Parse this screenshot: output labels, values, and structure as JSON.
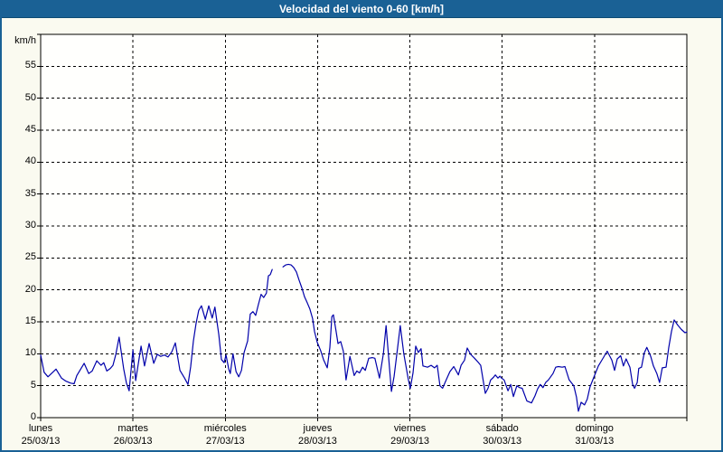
{
  "title_bar": {
    "text": "Velocidad del viento 0-60 [km/h]",
    "bg_color": "#1a6195",
    "text_color": "#ffffff"
  },
  "page": {
    "background_color": "#fafaf0",
    "border_color": "#1a6195"
  },
  "chart_data": {
    "type": "line",
    "title": "Velocidad del viento 0-60 [km/h]",
    "ylabel": "km/h",
    "xlabel": "",
    "ylim": [
      0,
      60
    ],
    "xlim": [
      0,
      168
    ],
    "ytick_interval": 5,
    "ytick_labels": [
      "0",
      "5",
      "10",
      "15",
      "20",
      "25",
      "30",
      "35",
      "40",
      "45",
      "50",
      "55"
    ],
    "x_unit": "hours from lunes 25/03/13 00:00",
    "grid": "black dashed; horizontal every 5 km/h, vertical at each day boundary",
    "legend_position": "none",
    "plot_bg": "#fffffd",
    "grid_color": "#000000",
    "line_color": "#0000aa",
    "days": [
      {
        "name": "lunes",
        "date": "25/03/13"
      },
      {
        "name": "martes",
        "date": "26/03/13"
      },
      {
        "name": "miércoles",
        "date": "27/03/13"
      },
      {
        "name": "jueves",
        "date": "28/03/13"
      },
      {
        "name": "viernes",
        "date": "29/03/13"
      },
      {
        "name": "sábado",
        "date": "30/03/13"
      },
      {
        "name": "domingo",
        "date": "31/03/13"
      }
    ],
    "data_gap_hours": [
      60.2,
      63.0
    ],
    "series": [
      {
        "name": "Velocidad del viento",
        "units": "km/h",
        "segments": [
          [
            [
              0,
              9.8
            ],
            [
              0.9,
              7.1
            ],
            [
              1.9,
              6.4
            ],
            [
              2.8,
              6.9
            ],
            [
              4,
              7.6
            ],
            [
              5.4,
              6.2
            ],
            [
              6.6,
              5.7
            ],
            [
              7.8,
              5.4
            ],
            [
              8.7,
              5.3
            ],
            [
              9.4,
              6.6
            ],
            [
              10.6,
              7.8
            ],
            [
              11.3,
              8.5
            ],
            [
              12.5,
              6.9
            ],
            [
              13.4,
              7.3
            ],
            [
              14.6,
              8.9
            ],
            [
              15.7,
              8.2
            ],
            [
              16.4,
              8.6
            ],
            [
              17.2,
              7.3
            ],
            [
              18.1,
              7.7
            ],
            [
              18.8,
              8.2
            ],
            [
              19.5,
              9.8
            ],
            [
              20.4,
              12.6
            ],
            [
              21.6,
              7.6
            ],
            [
              22.3,
              5.4
            ],
            [
              23,
              4.2
            ],
            [
              24,
              10.6
            ],
            [
              24.7,
              5.8
            ],
            [
              26.1,
              11.2
            ],
            [
              27,
              8.1
            ],
            [
              28.2,
              11.6
            ],
            [
              29.4,
              8.5
            ],
            [
              30.3,
              9.9
            ],
            [
              31.2,
              9.6
            ],
            [
              32.2,
              9.8
            ],
            [
              33.1,
              9.5
            ],
            [
              34.1,
              10.3
            ],
            [
              35,
              11.7
            ],
            [
              36.2,
              7.4
            ],
            [
              37.4,
              6.2
            ],
            [
              38.3,
              5.2
            ],
            [
              39,
              8
            ],
            [
              39.7,
              12
            ],
            [
              40.4,
              14.7
            ],
            [
              41.1,
              16.8
            ],
            [
              41.8,
              17.5
            ],
            [
              42.8,
              15.4
            ],
            [
              43.7,
              17.5
            ],
            [
              44.6,
              15.6
            ],
            [
              45.3,
              17.3
            ],
            [
              46.3,
              13
            ],
            [
              47,
              9.1
            ],
            [
              47.7,
              8.6
            ],
            [
              48.2,
              9.8
            ],
            [
              48.9,
              7.6
            ],
            [
              49.3,
              6.9
            ],
            [
              50,
              10
            ],
            [
              50.8,
              7.2
            ],
            [
              51.5,
              6.4
            ],
            [
              52.2,
              7.4
            ],
            [
              52.9,
              10.2
            ],
            [
              53.8,
              12
            ],
            [
              54.5,
              16.2
            ],
            [
              55.2,
              16.6
            ],
            [
              55.9,
              16
            ],
            [
              56.6,
              17.7
            ],
            [
              57.3,
              19.3
            ],
            [
              58,
              18.8
            ],
            [
              58.7,
              19.5
            ],
            [
              59.2,
              22.2
            ],
            [
              59.7,
              22.4
            ],
            [
              60.2,
              23.2
            ]
          ],
          [
            [
              63,
              23.6
            ],
            [
              63.7,
              23.9
            ],
            [
              64.4,
              24
            ],
            [
              65.1,
              23.9
            ],
            [
              65.8,
              23.5
            ],
            [
              66.5,
              22.8
            ],
            [
              67.2,
              21.5
            ],
            [
              67.9,
              20.3
            ],
            [
              68.6,
              18.9
            ],
            [
              69.3,
              18
            ],
            [
              70,
              17
            ],
            [
              70.7,
              15.5
            ],
            [
              71.2,
              13.5
            ],
            [
              71.9,
              11.8
            ],
            [
              72.8,
              10.5
            ],
            [
              73.6,
              9
            ],
            [
              74.5,
              7.8
            ],
            [
              75.2,
              11
            ],
            [
              75.7,
              15.8
            ],
            [
              76.1,
              16.1
            ],
            [
              76.8,
              13.5
            ],
            [
              77.3,
              11.6
            ],
            [
              78,
              11.9
            ],
            [
              78.7,
              10.4
            ],
            [
              79.4,
              5.9
            ],
            [
              80.4,
              9.6
            ],
            [
              81.5,
              6.6
            ],
            [
              82.2,
              7.3
            ],
            [
              82.9,
              7
            ],
            [
              83.7,
              7.9
            ],
            [
              84.4,
              7.4
            ],
            [
              85.3,
              9.3
            ],
            [
              86.2,
              9.4
            ],
            [
              86.9,
              9.3
            ],
            [
              88.1,
              6.2
            ],
            [
              89.1,
              10
            ],
            [
              89.8,
              14.4
            ],
            [
              91.2,
              4.1
            ],
            [
              91.9,
              6.5
            ],
            [
              92.8,
              11
            ],
            [
              93.5,
              14.4
            ],
            [
              94.4,
              10
            ],
            [
              95.6,
              5.9
            ],
            [
              96.1,
              4.6
            ],
            [
              96.8,
              7
            ],
            [
              97.5,
              11.2
            ],
            [
              98.2,
              10.2
            ],
            [
              98.9,
              10.8
            ],
            [
              99.4,
              8.1
            ],
            [
              100.6,
              7.9
            ],
            [
              101.5,
              8.2
            ],
            [
              102.4,
              7.8
            ],
            [
              103.1,
              8.2
            ],
            [
              103.8,
              5
            ],
            [
              104.5,
              4.6
            ],
            [
              105.5,
              6
            ],
            [
              106.4,
              7.2
            ],
            [
              107.4,
              8
            ],
            [
              108.6,
              6.7
            ],
            [
              109.3,
              8.2
            ],
            [
              110.2,
              9
            ],
            [
              110.9,
              10.9
            ],
            [
              111.8,
              9.9
            ],
            [
              112.8,
              9.3
            ],
            [
              113.7,
              8.7
            ],
            [
              114.4,
              8.2
            ],
            [
              115.6,
              3.8
            ],
            [
              116.3,
              4.6
            ],
            [
              117,
              5.9
            ],
            [
              117.7,
              6.3
            ],
            [
              118.2,
              6.7
            ],
            [
              118.9,
              6.2
            ],
            [
              119.4,
              6.5
            ],
            [
              119.8,
              6.2
            ],
            [
              120.5,
              5.9
            ],
            [
              121.5,
              4.2
            ],
            [
              122.2,
              5.2
            ],
            [
              122.9,
              3.3
            ],
            [
              123.8,
              5
            ],
            [
              124.5,
              4.7
            ],
            [
              125.2,
              4.6
            ],
            [
              126.4,
              2.6
            ],
            [
              127.6,
              2.3
            ],
            [
              128.5,
              3.4
            ],
            [
              129.2,
              4.5
            ],
            [
              129.9,
              5.2
            ],
            [
              130.6,
              4.7
            ],
            [
              131.3,
              5.5
            ],
            [
              132,
              5.9
            ],
            [
              133.2,
              6.9
            ],
            [
              133.9,
              7.9
            ],
            [
              134.6,
              8
            ],
            [
              135.6,
              7.9
            ],
            [
              136.3,
              8
            ],
            [
              137.4,
              5.9
            ],
            [
              138.6,
              5
            ],
            [
              139.3,
              3.2
            ],
            [
              139.8,
              1
            ],
            [
              140.5,
              2.4
            ],
            [
              141.4,
              2
            ],
            [
              142.1,
              2.9
            ],
            [
              142.8,
              4.8
            ],
            [
              143.8,
              6.3
            ],
            [
              145,
              8.1
            ],
            [
              146.1,
              9.2
            ],
            [
              147.3,
              10.4
            ],
            [
              148.5,
              9
            ],
            [
              149.2,
              7.4
            ],
            [
              149.9,
              9.2
            ],
            [
              150.8,
              9.7
            ],
            [
              151.5,
              8.1
            ],
            [
              152.2,
              9.2
            ],
            [
              153.2,
              7.9
            ],
            [
              153.9,
              5.2
            ],
            [
              154.4,
              4.6
            ],
            [
              155.1,
              5.5
            ],
            [
              155.5,
              7.7
            ],
            [
              156.2,
              7.9
            ],
            [
              156.9,
              10.1
            ],
            [
              157.6,
              11
            ],
            [
              158.6,
              9.6
            ],
            [
              159.3,
              8.1
            ],
            [
              160.2,
              6.9
            ],
            [
              160.9,
              5.5
            ],
            [
              161.6,
              7.8
            ],
            [
              162.6,
              7.9
            ],
            [
              163.3,
              11
            ],
            [
              164,
              13.5
            ],
            [
              164.7,
              15.3
            ],
            [
              165.6,
              14.5
            ],
            [
              166.6,
              13.8
            ],
            [
              167.5,
              13.3
            ],
            [
              168,
              13.4
            ]
          ]
        ]
      }
    ]
  }
}
